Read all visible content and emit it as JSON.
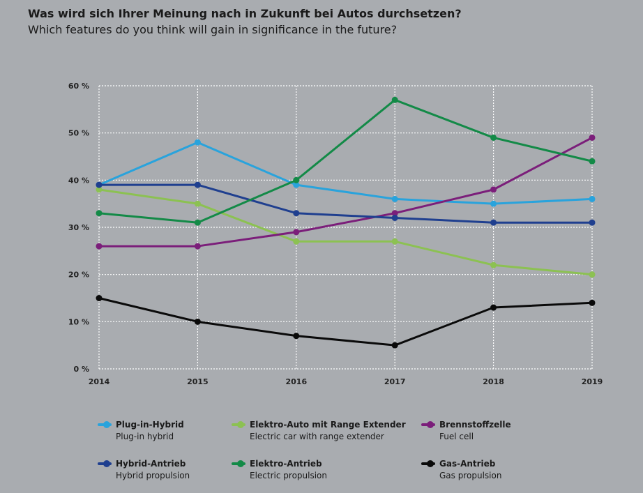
{
  "chart_data": {
    "type": "line",
    "title": "Was wird sich Ihrer Meinung nach in Zukunft bei Autos durchsetzen?",
    "subtitle": "Which features do you think will gain in significance in the future?",
    "x": [
      "2014",
      "2015",
      "2016",
      "2017",
      "2018",
      "2019"
    ],
    "y_ticks": [
      "0 %",
      "10 %",
      "20 %",
      "30 %",
      "40 %",
      "50 %",
      "60 %"
    ],
    "ylim": [
      0,
      60
    ],
    "grid": true,
    "series": [
      {
        "name": "Plug-in-Hybrid",
        "name_en": "Plug-in hybrid",
        "color": "#29a3dc",
        "values": [
          39,
          48,
          39,
          36,
          35,
          36
        ]
      },
      {
        "name": "Elektro-Auto mit Range Extender",
        "name_en": "Electric car with range extender",
        "color": "#8cc152",
        "values": [
          38,
          35,
          27,
          27,
          22,
          20
        ]
      },
      {
        "name": "Brennstoffzelle",
        "name_en": "Fuel cell",
        "color": "#7b1e7a",
        "values": [
          26,
          26,
          29,
          33,
          38,
          49
        ]
      },
      {
        "name": "Hybrid-Antrieb",
        "name_en": "Hybrid propulsion",
        "color": "#1f3f8f",
        "values": [
          39,
          39,
          33,
          32,
          31,
          31
        ]
      },
      {
        "name": "Elektro-Antrieb",
        "name_en": "Electric propulsion",
        "color": "#138a47",
        "values": [
          33,
          31,
          40,
          57,
          49,
          44
        ]
      },
      {
        "name": "Gas-Antrieb",
        "name_en": "Gas propulsion",
        "color": "#0a0a0a",
        "values": [
          15,
          10,
          7,
          5,
          13,
          14
        ]
      }
    ]
  }
}
